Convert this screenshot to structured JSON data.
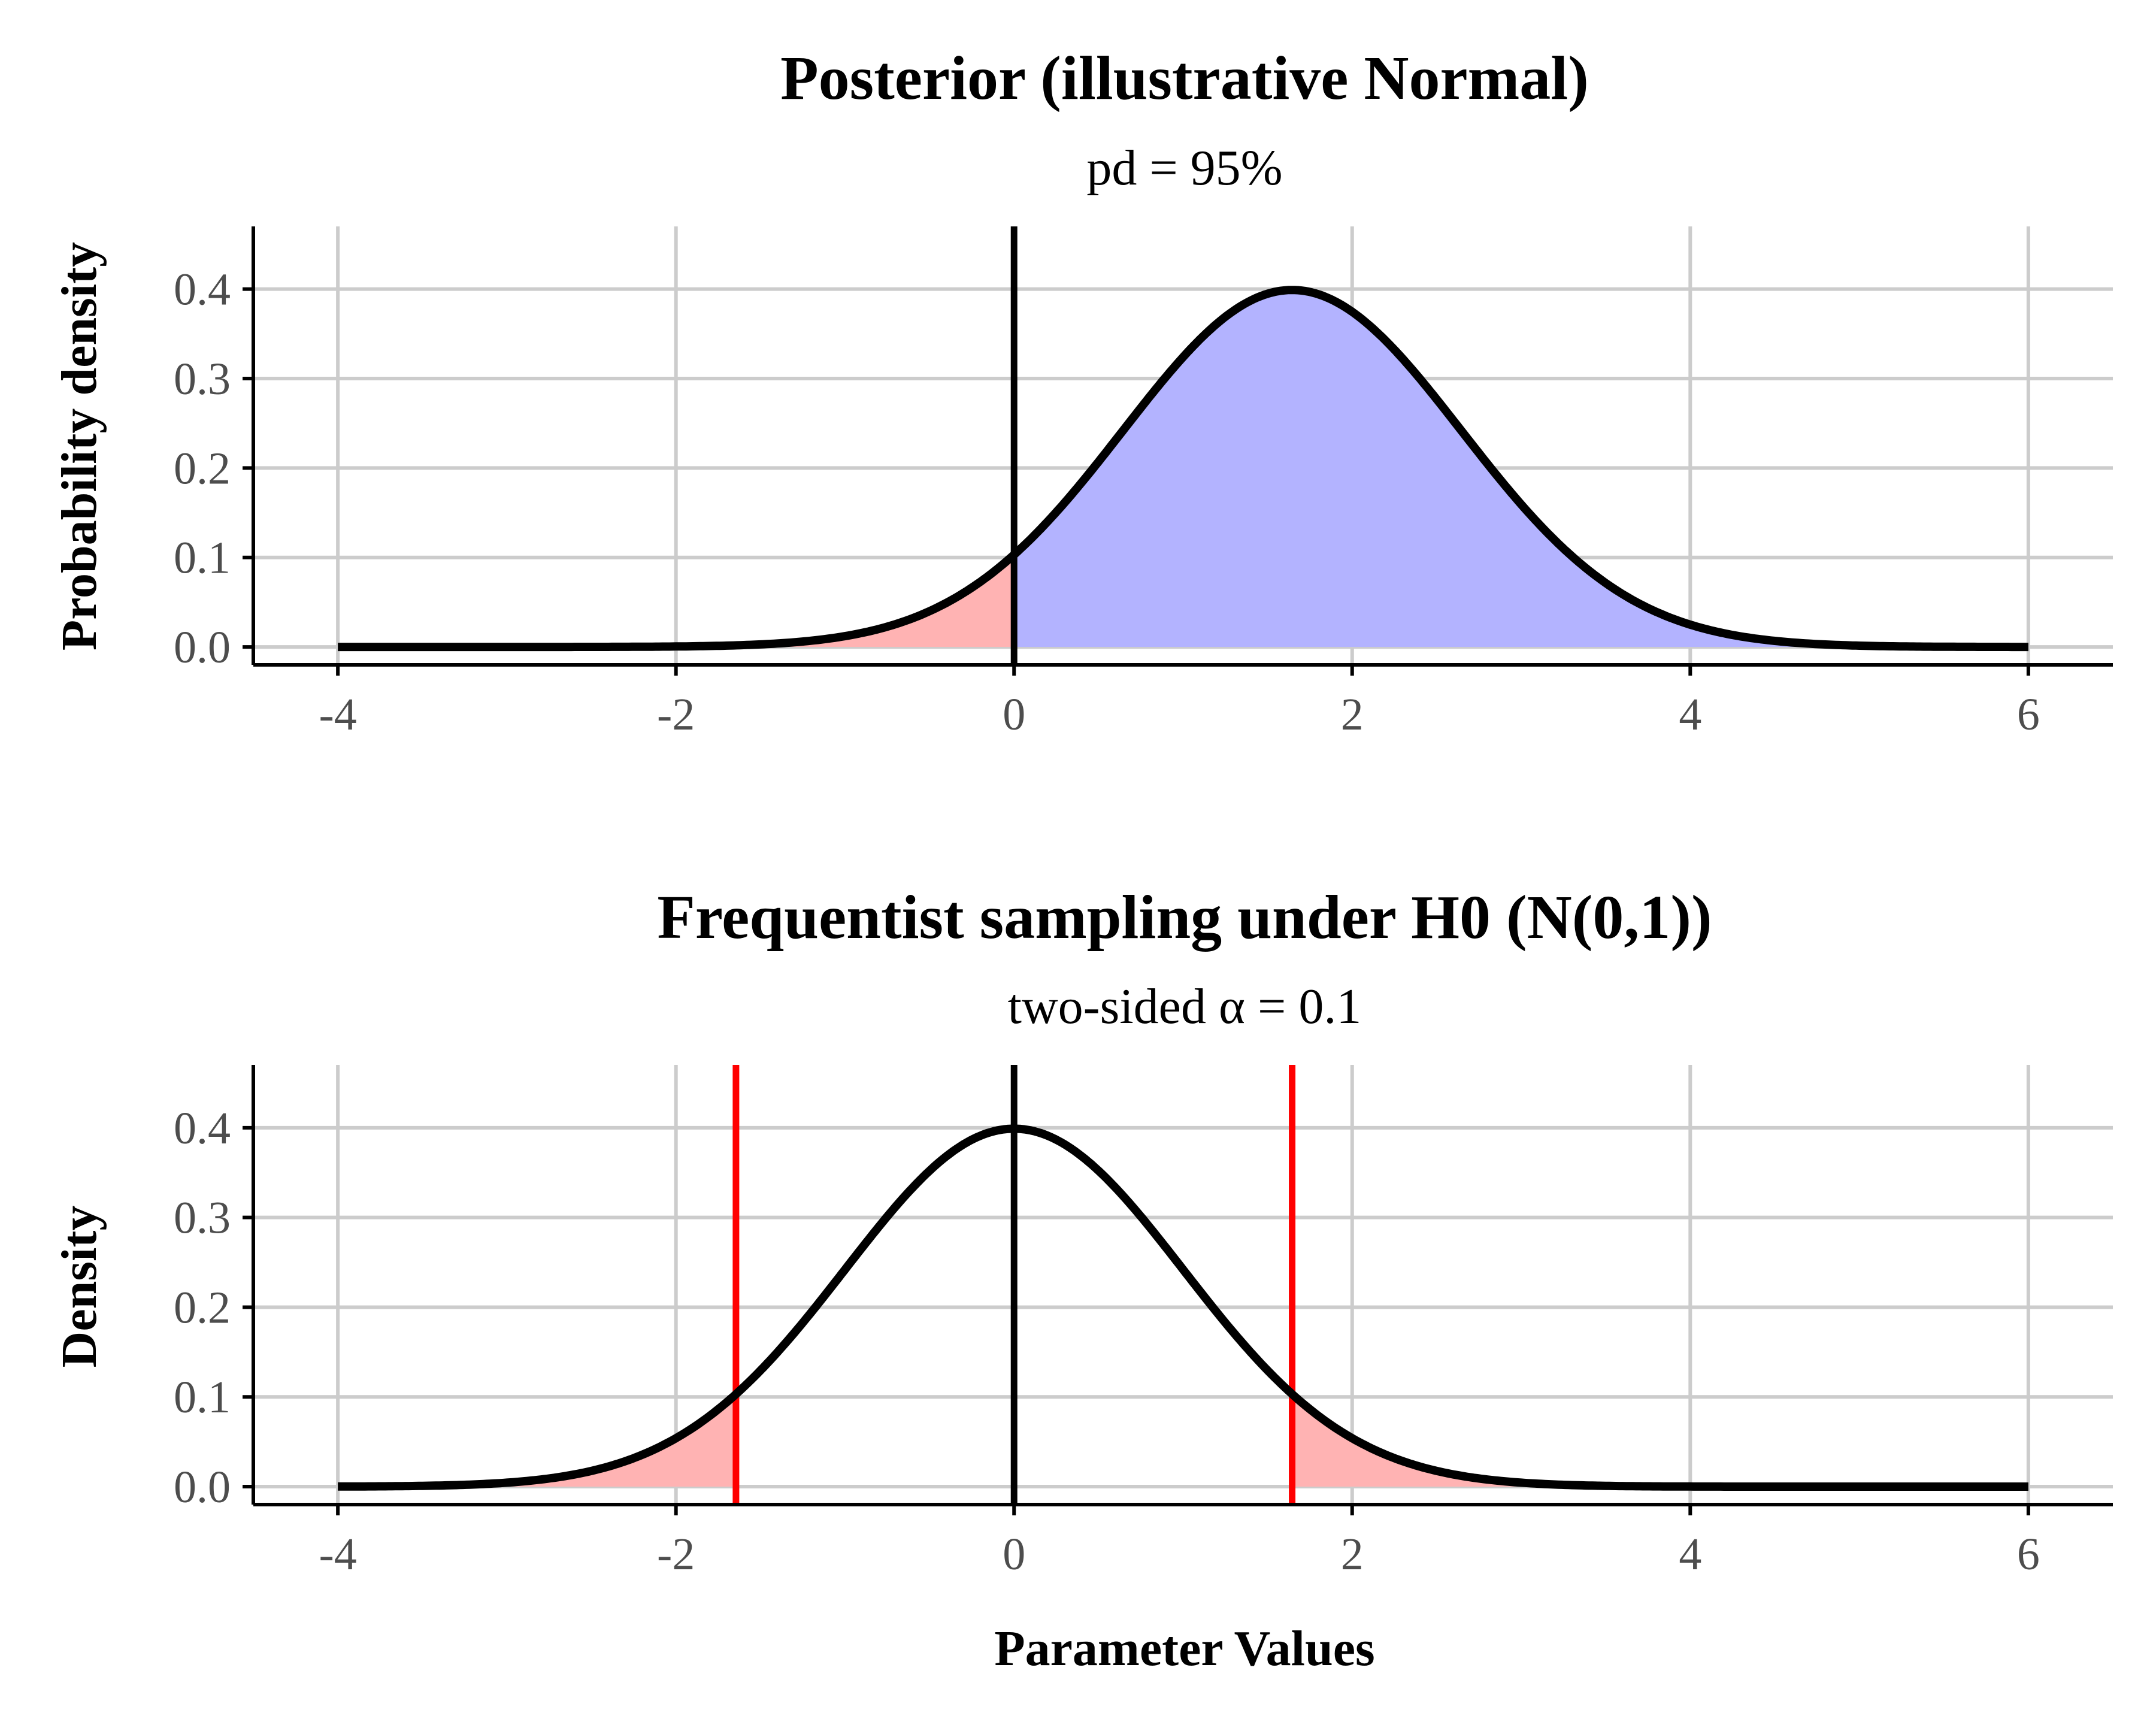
{
  "chart_data": [
    {
      "type": "area",
      "title": "Posterior (illustrative Normal)",
      "subtitle": "pd = 95%",
      "xlabel": "",
      "ylabel": "Probability density",
      "distribution": {
        "family": "normal",
        "mean": 1.645,
        "sd": 1
      },
      "x_range": [
        -4,
        6
      ],
      "xlim": [
        -4.5,
        6.5
      ],
      "ylim": [
        -0.02,
        0.47
      ],
      "x_ticks": [
        -4,
        -2,
        0,
        2,
        4,
        6
      ],
      "y_ticks": [
        0.0,
        0.1,
        0.2,
        0.3,
        0.4
      ],
      "x_tick_labels": [
        "-4",
        "-2",
        "0",
        "2",
        "4",
        "6"
      ],
      "y_tick_labels": [
        "0.0",
        "0.1",
        "0.2",
        "0.3",
        "0.4"
      ],
      "regions": [
        {
          "from": -4,
          "to": 0,
          "color": "#ffb3b3"
        },
        {
          "from": 0,
          "to": 6,
          "color": "#b3b3ff"
        }
      ],
      "vlines": [
        {
          "x": 0,
          "color": "#000000"
        }
      ],
      "grid": true
    },
    {
      "type": "area",
      "title": "Frequentist sampling under H0 (N(0,1))",
      "subtitle": "two-sided α = 0.1",
      "xlabel": "Parameter Values",
      "ylabel": "Density",
      "distribution": {
        "family": "normal",
        "mean": 0,
        "sd": 1
      },
      "x_range": [
        -4,
        6
      ],
      "xlim": [
        -4.5,
        6.5
      ],
      "ylim": [
        -0.02,
        0.47
      ],
      "x_ticks": [
        -4,
        -2,
        0,
        2,
        4,
        6
      ],
      "y_ticks": [
        0.0,
        0.1,
        0.2,
        0.3,
        0.4
      ],
      "x_tick_labels": [
        "-4",
        "-2",
        "0",
        "2",
        "4",
        "6"
      ],
      "y_tick_labels": [
        "0.0",
        "0.1",
        "0.2",
        "0.3",
        "0.4"
      ],
      "regions": [
        {
          "from": -4,
          "to": -1.645,
          "color": "#ffb3b3"
        },
        {
          "from": 1.645,
          "to": 6,
          "color": "#ffb3b3"
        }
      ],
      "vlines": [
        {
          "x": 0,
          "color": "#000000"
        },
        {
          "x": -1.645,
          "color": "#ff0000"
        },
        {
          "x": 1.645,
          "color": "#ff0000"
        }
      ],
      "grid": true
    }
  ]
}
